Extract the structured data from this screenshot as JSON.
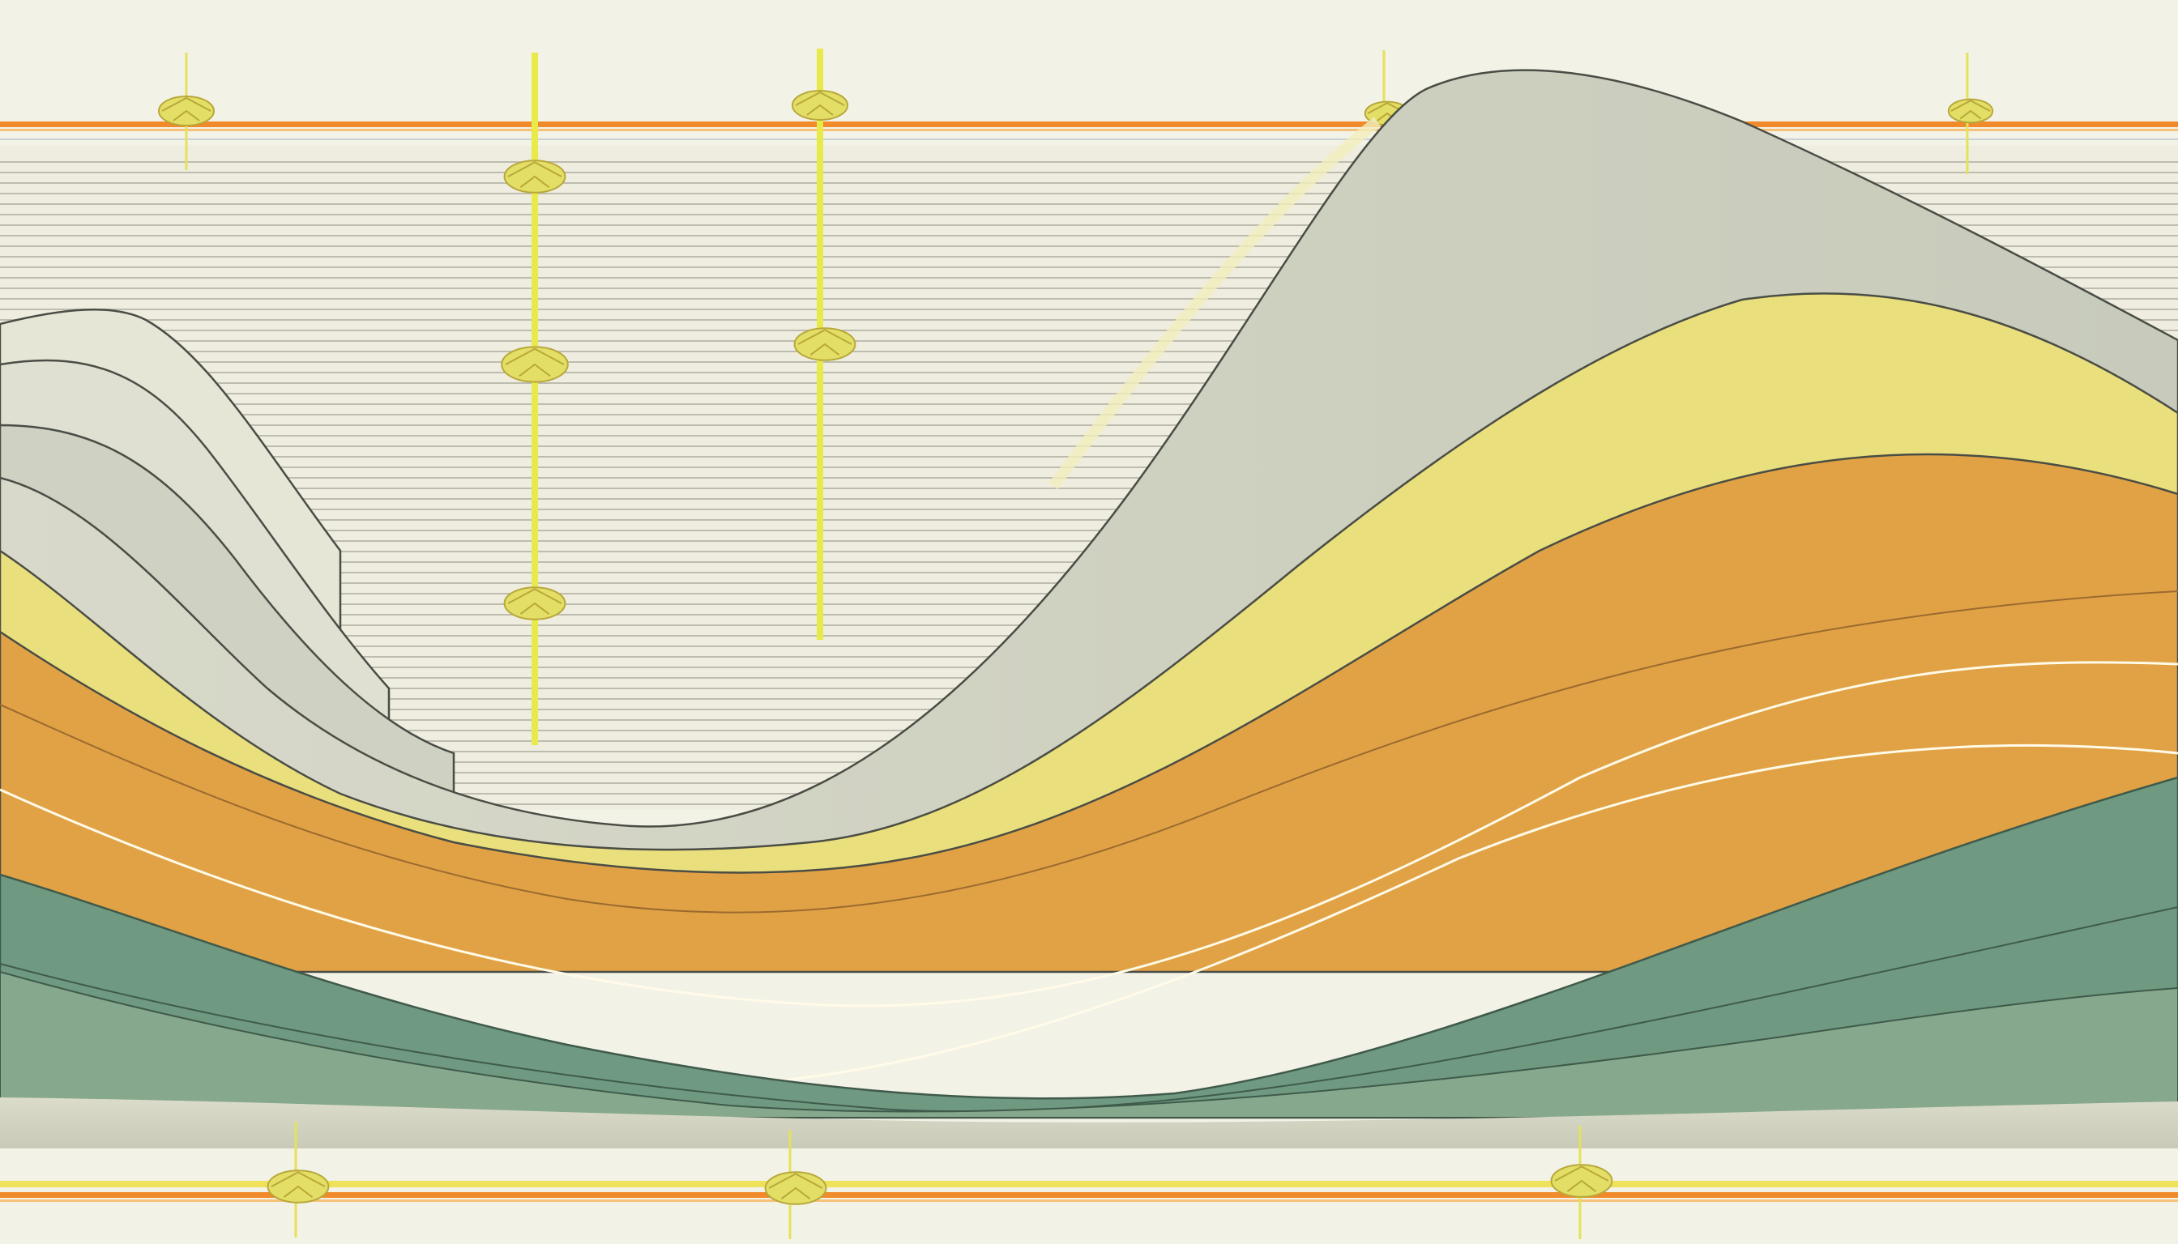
{
  "scene": {
    "kind": "abstract illustration",
    "palette": {
      "background": "#f3f2e6",
      "paper": "#eeede0",
      "stripe": "#bdbcaf",
      "rail_orange": "#f08a2a",
      "rail_yellow": "#efe25a",
      "post": "#e8ea4a",
      "knot": "#e3de66",
      "band_pale": "#e3e3d3",
      "band_gray": "#cfd0c0",
      "band_yellow": "#eadf7d",
      "band_orange": "#e1a246",
      "band_teal": "#6f9980",
      "band_sage": "#86a88c",
      "band_base": "#c5c5b4",
      "outline": "#4a4d45",
      "highlight": "#fffbe8"
    },
    "icons": {
      "post_marker": "lemon-knot-icon"
    }
  }
}
